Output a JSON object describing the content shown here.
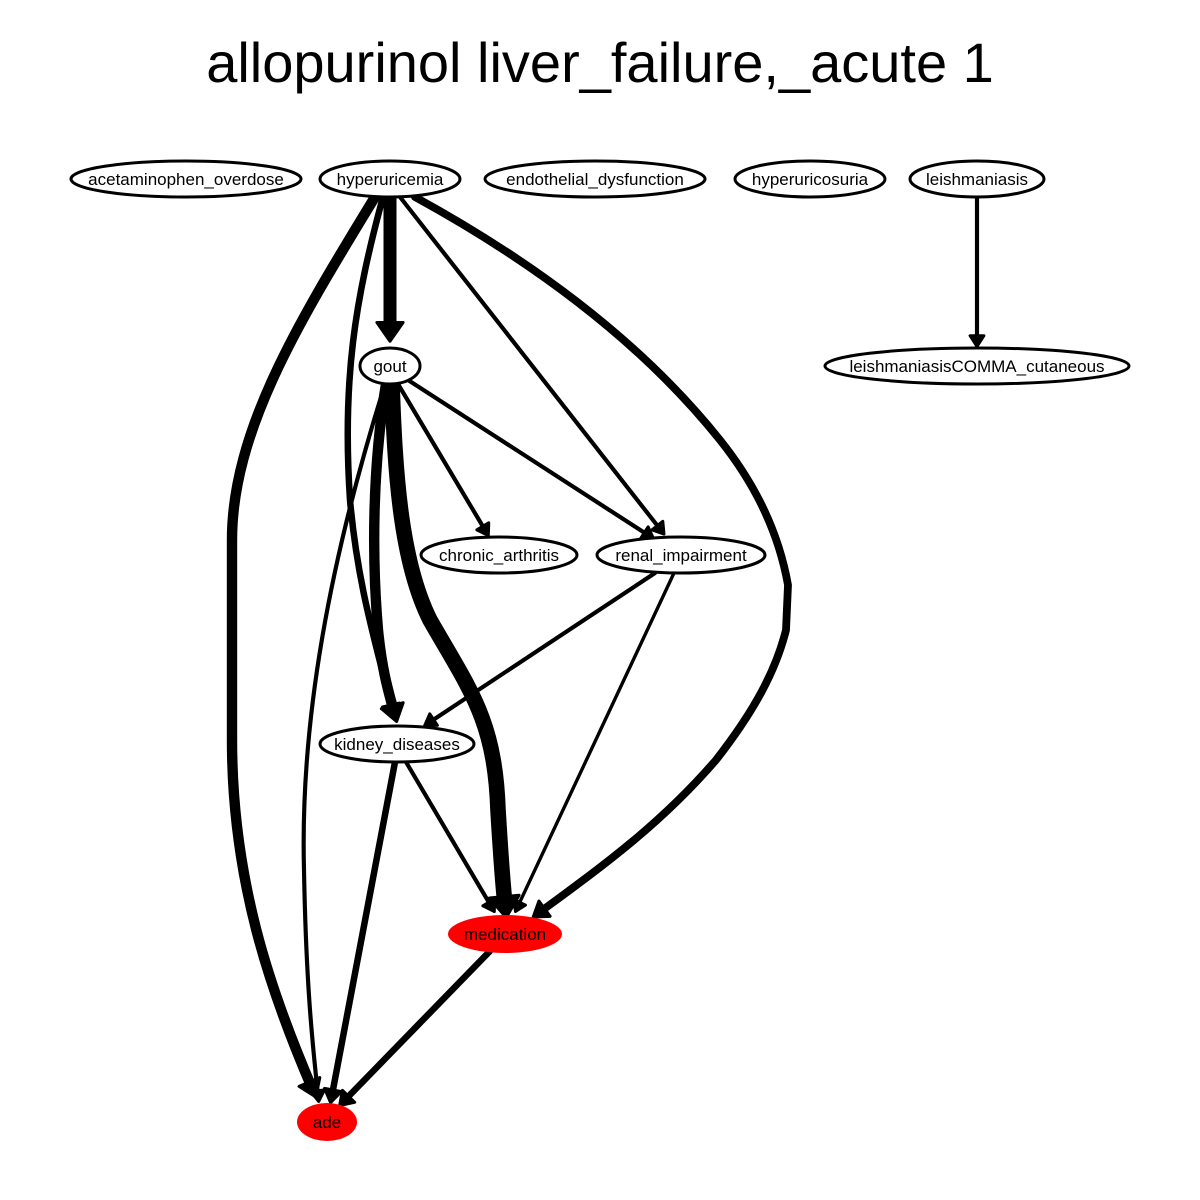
{
  "title": "allopurinol liver_failure,_acute 1",
  "colors": {
    "edge": "#000000",
    "node_fill": "#ffffff",
    "node_stroke": "#000000",
    "highlight_fill": "#ff0000"
  },
  "nodes": [
    {
      "id": "acetaminophen_overdose",
      "label": "acetaminophen_overdose",
      "highlight": false
    },
    {
      "id": "hyperuricemia",
      "label": "hyperuricemia",
      "highlight": false
    },
    {
      "id": "endothelial_dysfunction",
      "label": "endothelial_dysfunction",
      "highlight": false
    },
    {
      "id": "hyperuricosuria",
      "label": "hyperuricosuria",
      "highlight": false
    },
    {
      "id": "leishmaniasis",
      "label": "leishmaniasis",
      "highlight": false
    },
    {
      "id": "gout",
      "label": "gout",
      "highlight": false
    },
    {
      "id": "leishmaniasis_cutaneous",
      "label": "leishmaniasisCOMMA_cutaneous",
      "highlight": false
    },
    {
      "id": "chronic_arthritis",
      "label": "chronic_arthritis",
      "highlight": false
    },
    {
      "id": "renal_impairment",
      "label": "renal_impairment",
      "highlight": false
    },
    {
      "id": "kidney_diseases",
      "label": "kidney_diseases",
      "highlight": false
    },
    {
      "id": "medication",
      "label": "medication",
      "highlight": true
    },
    {
      "id": "ade",
      "label": "ade",
      "highlight": true
    }
  ],
  "edges": [
    {
      "from": "hyperuricemia",
      "to": "gout",
      "weight": 5
    },
    {
      "from": "hyperuricemia",
      "to": "ade",
      "weight": 4
    },
    {
      "from": "hyperuricemia",
      "to": "kidney_diseases",
      "weight": 2.5
    },
    {
      "from": "hyperuricemia",
      "to": "renal_impairment",
      "weight": 1.6
    },
    {
      "from": "hyperuricemia",
      "to": "medication",
      "weight": 3
    },
    {
      "from": "leishmaniasis",
      "to": "leishmaniasis_cutaneous",
      "weight": 1.6
    },
    {
      "from": "gout",
      "to": "chronic_arthritis",
      "weight": 1.6
    },
    {
      "from": "gout",
      "to": "renal_impairment",
      "weight": 1.6
    },
    {
      "from": "gout",
      "to": "kidney_diseases",
      "weight": 4
    },
    {
      "from": "gout",
      "to": "medication",
      "weight": 6
    },
    {
      "from": "gout",
      "to": "ade",
      "weight": 1.6
    },
    {
      "from": "renal_impairment",
      "to": "kidney_diseases",
      "weight": 1.6
    },
    {
      "from": "renal_impairment",
      "to": "medication",
      "weight": 1.3
    },
    {
      "from": "kidney_diseases",
      "to": "medication",
      "weight": 1.6
    },
    {
      "from": "kidney_diseases",
      "to": "ade",
      "weight": 2.5
    },
    {
      "from": "medication",
      "to": "ade",
      "weight": 2.5
    }
  ]
}
